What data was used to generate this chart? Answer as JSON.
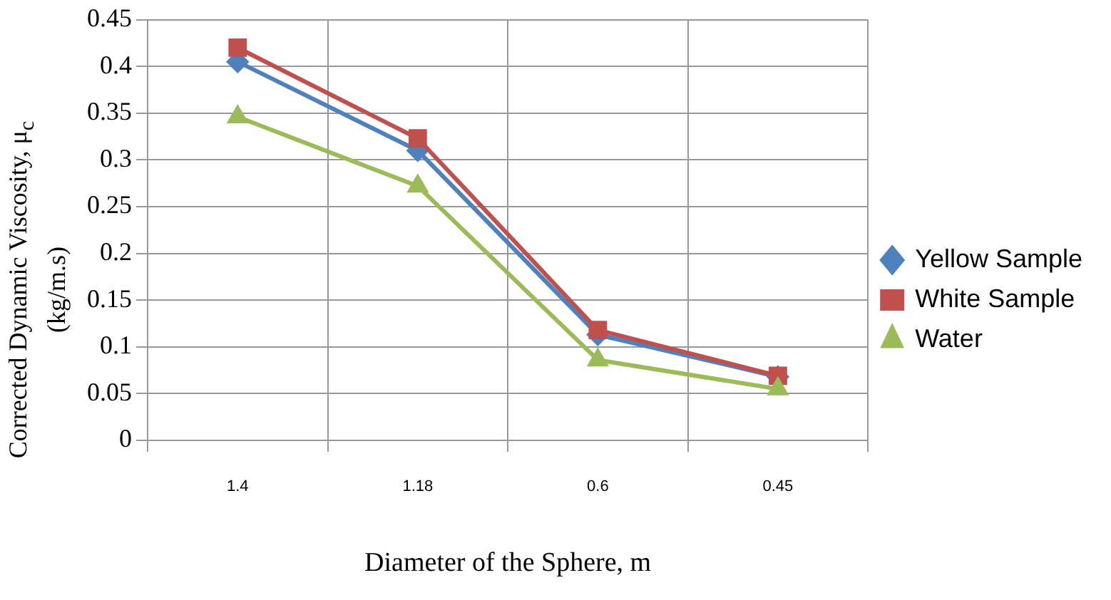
{
  "chart_data": {
    "type": "line",
    "xlabel": "Diameter of the Sphere, m",
    "ylabel": "Corrected Dynamic Viscosity, μ$_{c}$ (kg/m.s)",
    "categories": [
      "1.4",
      "1.18",
      "0.6",
      "0.45"
    ],
    "series": [
      {
        "name": "Yellow Sample",
        "color": "#4f81bd",
        "marker": "diamond",
        "values": [
          0.405,
          0.31,
          0.113,
          0.068
        ]
      },
      {
        "name": "White Sample",
        "color": "#c0504d",
        "marker": "square",
        "values": [
          0.42,
          0.323,
          0.118,
          0.069
        ]
      },
      {
        "name": "Water",
        "color": "#9bbb59",
        "marker": "triangle",
        "values": [
          0.346,
          0.272,
          0.086,
          0.055
        ]
      }
    ],
    "ylim": [
      0,
      0.45
    ],
    "yticks": [
      0,
      0.05,
      0.1,
      0.15,
      0.2,
      0.25,
      0.3,
      0.35,
      0.4,
      0.45
    ],
    "grid": true,
    "legend": "right"
  }
}
